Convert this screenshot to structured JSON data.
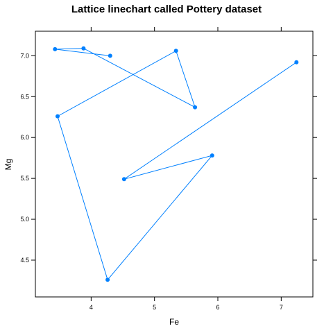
{
  "chart_data": {
    "type": "line",
    "title": "Lattice linechart called Pottery dataset",
    "xlabel": "Fe",
    "ylabel": "Mg",
    "xlim": [
      3.12,
      7.5
    ],
    "ylim": [
      4.05,
      7.3
    ],
    "x_ticks": [
      4,
      5,
      6,
      7
    ],
    "y_ticks": [
      4.5,
      5.0,
      5.5,
      6.0,
      6.5,
      7.0
    ],
    "x_tick_labels": [
      "4",
      "5",
      "6",
      "7"
    ],
    "y_tick_labels": [
      "4.5",
      "5.0",
      "5.5",
      "6.0",
      "6.5",
      "7.0"
    ],
    "line_color": "#0080ff",
    "series": [
      {
        "x": [
          4.3,
          3.43,
          3.88,
          5.64,
          5.34,
          3.47,
          4.26,
          5.91,
          4.52,
          7.24
        ],
        "y": [
          7.0,
          7.08,
          7.09,
          6.37,
          7.06,
          6.26,
          4.26,
          5.78,
          5.49,
          6.92
        ]
      }
    ],
    "grid": false,
    "legend": "none"
  }
}
